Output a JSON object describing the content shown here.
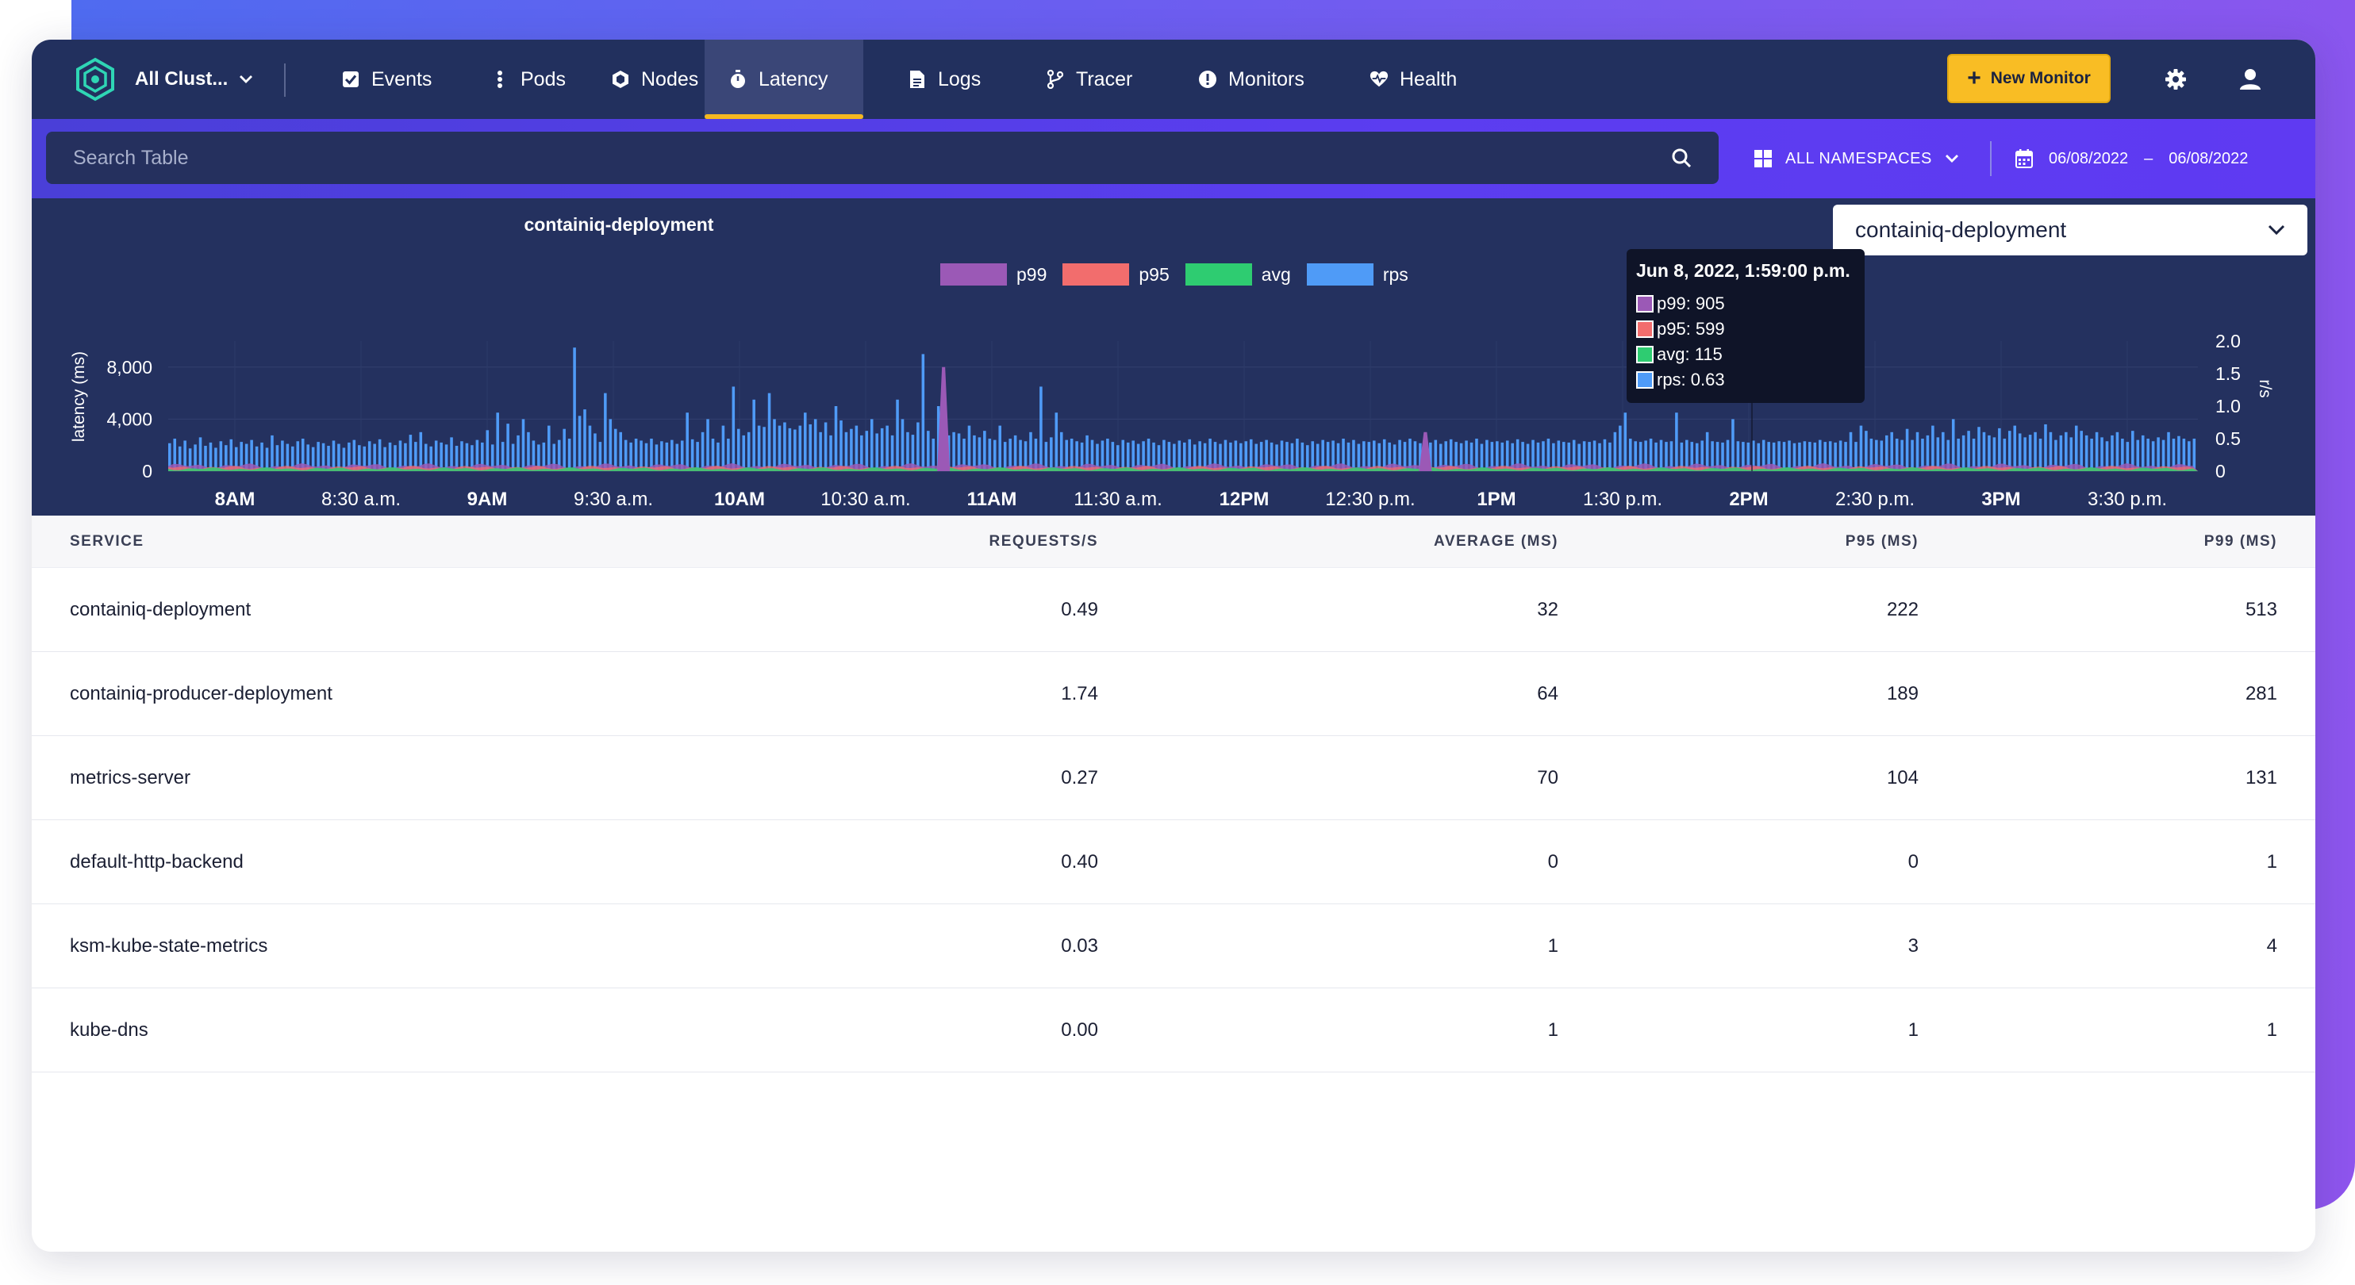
{
  "nav": {
    "cluster_label": "All Clust...",
    "items": [
      {
        "label": "Events",
        "icon": "checkbox-icon"
      },
      {
        "label": "Pods",
        "icon": "vertical-dots-icon"
      },
      {
        "label": "Nodes",
        "icon": "hexagon-icon"
      },
      {
        "label": "Latency",
        "icon": "stopwatch-icon",
        "active": true
      },
      {
        "label": "Logs",
        "icon": "document-icon"
      },
      {
        "label": "Tracer",
        "icon": "branch-icon"
      },
      {
        "label": "Monitors",
        "icon": "alert-icon"
      },
      {
        "label": "Health",
        "icon": "heartbeat-icon"
      }
    ],
    "new_monitor_label": "New Monitor"
  },
  "filters": {
    "search_placeholder": "Search Table",
    "namespace_label": "ALL NAMESPACES",
    "date_from": "06/08/2022",
    "date_sep": "–",
    "date_to": "06/08/2022"
  },
  "colors": {
    "p99": "#9b59b6",
    "p95": "#f26d6d",
    "avg": "#2ecc71",
    "rps": "#4f9bf7",
    "accent": "#f9bd24"
  },
  "chart_data": {
    "type": "bar",
    "title": "containiq-deployment",
    "ylabel": "latency (ms)",
    "y2label": "r/s",
    "y_ticks": [
      "8,000",
      "4,000",
      "0"
    ],
    "y2_ticks": [
      "2.0",
      "1.5",
      "1.0",
      "0.5",
      "0"
    ],
    "ylim": [
      0,
      10000
    ],
    "y2lim": [
      0,
      2.0
    ],
    "x_ticks": [
      {
        "label": "8AM",
        "bold": true
      },
      {
        "label": "8:30 a.m.",
        "bold": false
      },
      {
        "label": "9AM",
        "bold": true
      },
      {
        "label": "9:30 a.m.",
        "bold": false
      },
      {
        "label": "10AM",
        "bold": true
      },
      {
        "label": "10:30 a.m.",
        "bold": false
      },
      {
        "label": "11AM",
        "bold": true
      },
      {
        "label": "11:30 a.m.",
        "bold": false
      },
      {
        "label": "12PM",
        "bold": true
      },
      {
        "label": "12:30 p.m.",
        "bold": false
      },
      {
        "label": "1PM",
        "bold": true
      },
      {
        "label": "1:30 p.m.",
        "bold": false
      },
      {
        "label": "2PM",
        "bold": true
      },
      {
        "label": "2:30 p.m.",
        "bold": false
      },
      {
        "label": "3PM",
        "bold": true
      },
      {
        "label": "3:30 p.m.",
        "bold": false
      }
    ],
    "legend": [
      "p99",
      "p95",
      "avg",
      "rps"
    ],
    "selected_deployment": "containiq-deployment",
    "rps_series": [
      0.43,
      0.5,
      0.38,
      0.47,
      0.35,
      0.41,
      0.52,
      0.39,
      0.44,
      0.36,
      0.46,
      0.4,
      0.49,
      0.37,
      0.45,
      0.42,
      0.48,
      0.38,
      0.44,
      0.36,
      0.55,
      0.4,
      0.47,
      0.42,
      0.38,
      0.46,
      0.5,
      0.41,
      0.37,
      0.45,
      0.43,
      0.39,
      0.47,
      0.42,
      0.36,
      0.44,
      0.48,
      0.4,
      0.38,
      0.46,
      0.42,
      0.49,
      0.37,
      0.44,
      0.4,
      0.47,
      0.43,
      0.56,
      0.45,
      0.6,
      0.42,
      0.38,
      0.47,
      0.44,
      0.41,
      0.52,
      0.39,
      0.46,
      0.43,
      0.4,
      0.48,
      0.44,
      0.63,
      0.41,
      0.9,
      0.45,
      0.73,
      0.42,
      0.55,
      0.8,
      0.6,
      0.47,
      0.41,
      0.44,
      0.7,
      0.42,
      0.48,
      0.65,
      0.5,
      1.9,
      0.85,
      0.95,
      0.7,
      0.58,
      0.45,
      1.2,
      0.8,
      0.65,
      0.6,
      0.48,
      0.44,
      0.5,
      0.47,
      0.43,
      0.5,
      0.41,
      0.46,
      0.44,
      0.48,
      0.42,
      0.47,
      0.9,
      0.49,
      0.45,
      0.6,
      0.8,
      0.5,
      0.44,
      0.7,
      0.5,
      1.3,
      0.65,
      0.55,
      0.6,
      1.1,
      0.7,
      0.68,
      1.2,
      0.8,
      0.7,
      0.75,
      0.66,
      0.64,
      0.7,
      0.9,
      0.72,
      0.8,
      0.6,
      0.75,
      0.55,
      1.0,
      0.78,
      0.6,
      0.65,
      0.7,
      0.55,
      0.62,
      0.8,
      0.58,
      0.66,
      0.7,
      0.55,
      1.1,
      0.8,
      0.6,
      0.56,
      0.75,
      1.8,
      0.62,
      0.5,
      1.0,
      0.7,
      0.55,
      0.6,
      0.58,
      0.5,
      0.7,
      0.55,
      0.52,
      0.62,
      0.5,
      0.48,
      0.7,
      0.45,
      0.5,
      0.55,
      0.48,
      0.46,
      0.6,
      0.5,
      1.3,
      0.45,
      0.52,
      0.9,
      0.6,
      0.48,
      0.5,
      0.46,
      0.44,
      0.55,
      0.48,
      0.42,
      0.47,
      0.5,
      0.45,
      0.4,
      0.48,
      0.44,
      0.47,
      0.42,
      0.46,
      0.5,
      0.44,
      0.4,
      0.48,
      0.45,
      0.42,
      0.47,
      0.44,
      0.49,
      0.41,
      0.46,
      0.43,
      0.5,
      0.45,
      0.42,
      0.48,
      0.44,
      0.47,
      0.43,
      0.46,
      0.49,
      0.42,
      0.45,
      0.48,
      0.44,
      0.41,
      0.47,
      0.45,
      0.43,
      0.5,
      0.44,
      0.4,
      0.46,
      0.42,
      0.48,
      0.45,
      0.47,
      0.43,
      0.5,
      0.44,
      0.48,
      0.42,
      0.46,
      0.45,
      0.47,
      0.43,
      0.49,
      0.44,
      0.41,
      0.48,
      0.45,
      0.5,
      0.46,
      0.43,
      0.47,
      0.44,
      0.48,
      0.42,
      0.46,
      0.49,
      0.45,
      0.43,
      0.47,
      0.44,
      0.5,
      0.42,
      0.48,
      0.45,
      0.46,
      0.44,
      0.47,
      0.43,
      0.49,
      0.45,
      0.42,
      0.48,
      0.44,
      0.46,
      0.5,
      0.43,
      0.47,
      0.45,
      0.44,
      0.48,
      0.42,
      0.46,
      0.45,
      0.47,
      0.43,
      0.49,
      0.44,
      0.6,
      0.7,
      0.9,
      0.5,
      0.46,
      0.45,
      0.47,
      0.5,
      0.44,
      0.48,
      0.45,
      0.46,
      0.9,
      0.44,
      0.48,
      0.45,
      0.43,
      0.47,
      0.6,
      0.46,
      0.45,
      0.44,
      0.48,
      0.8,
      0.46,
      0.45,
      0.44,
      0.47,
      0.43,
      0.48,
      0.45,
      0.44,
      0.46,
      0.45,
      0.47,
      0.43,
      0.44,
      0.46,
      0.45,
      0.44,
      0.48,
      0.45,
      0.46,
      0.44,
      0.47,
      0.45,
      0.6,
      0.45,
      0.7,
      0.62,
      0.5,
      0.48,
      0.47,
      0.55,
      0.6,
      0.5,
      0.48,
      0.65,
      0.48,
      0.6,
      0.5,
      0.55,
      0.7,
      0.52,
      0.6,
      0.48,
      0.8,
      0.5,
      0.55,
      0.62,
      0.5,
      0.68,
      0.6,
      0.55,
      0.52,
      0.66,
      0.5,
      0.62,
      0.7,
      0.58,
      0.52,
      0.56,
      0.6,
      0.5,
      0.72,
      0.6,
      0.48,
      0.55,
      0.6,
      0.52,
      0.7,
      0.62,
      0.55,
      0.5,
      0.6,
      0.52,
      0.46,
      0.55,
      0.6,
      0.5,
      0.45,
      0.62,
      0.48,
      0.55,
      0.5,
      0.46,
      0.52,
      0.48,
      0.6,
      0.5,
      0.54,
      0.5,
      0.46,
      0.5
    ],
    "p99_spikes": [
      {
        "index": 151,
        "value": 8000
      },
      {
        "index": 245,
        "value": 3000
      }
    ],
    "tooltip": {
      "title": "Jun 8, 2022, 1:59:00 p.m.",
      "p99": "p99: 905",
      "p95": "p95: 599",
      "avg": "avg: 115",
      "rps": "rps: 0.63"
    }
  },
  "table": {
    "headers": {
      "service": "SERVICE",
      "rps": "REQUESTS/S",
      "avg": "AVERAGE (MS)",
      "p95": "P95 (MS)",
      "p99": "P99 (MS)"
    },
    "rows": [
      {
        "service": "containiq-deployment",
        "rps": "0.49",
        "avg": "32",
        "p95": "222",
        "p99": "513"
      },
      {
        "service": "containiq-producer-deployment",
        "rps": "1.74",
        "avg": "64",
        "p95": "189",
        "p99": "281"
      },
      {
        "service": "metrics-server",
        "rps": "0.27",
        "avg": "70",
        "p95": "104",
        "p99": "131"
      },
      {
        "service": "default-http-backend",
        "rps": "0.40",
        "avg": "0",
        "p95": "0",
        "p99": "1"
      },
      {
        "service": "ksm-kube-state-metrics",
        "rps": "0.03",
        "avg": "1",
        "p95": "3",
        "p99": "4"
      },
      {
        "service": "kube-dns",
        "rps": "0.00",
        "avg": "1",
        "p95": "1",
        "p99": "1"
      }
    ]
  }
}
